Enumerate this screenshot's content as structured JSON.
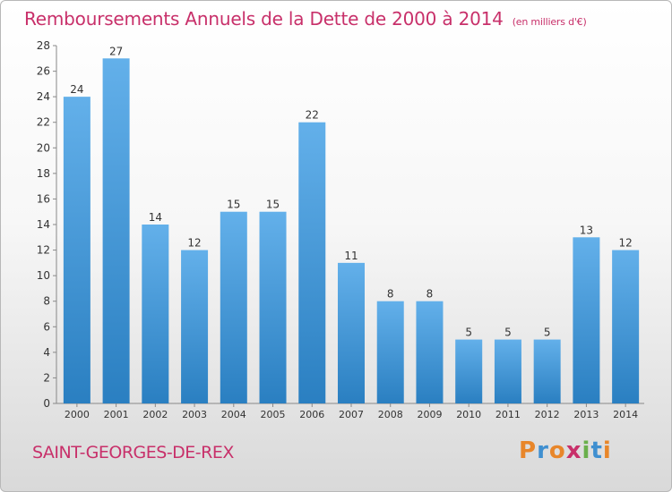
{
  "header": {
    "title": "Remboursements Annuels de la Dette de 2000 à 2014",
    "unit": "(en milliers d'€)"
  },
  "footer": {
    "commune": "SAINT-GEORGES-DE-REX",
    "brand": "Proxiti",
    "brand_letters": [
      {
        "ch": "P",
        "color": "#e8862a"
      },
      {
        "ch": "r",
        "color": "#3f8fd0"
      },
      {
        "ch": "o",
        "color": "#e8862a"
      },
      {
        "ch": "x",
        "color": "#c8306a"
      },
      {
        "ch": "i",
        "color": "#6ab04c"
      },
      {
        "ch": "t",
        "color": "#3f8fd0"
      },
      {
        "ch": "i",
        "color": "#e8862a"
      }
    ]
  },
  "chart_data": {
    "type": "bar",
    "categories": [
      "2000",
      "2001",
      "2002",
      "2003",
      "2004",
      "2005",
      "2006",
      "2007",
      "2008",
      "2009",
      "2010",
      "2011",
      "2012",
      "2013",
      "2014"
    ],
    "values": [
      24,
      27,
      14,
      12,
      15,
      15,
      22,
      11,
      8,
      8,
      5,
      5,
      5,
      13,
      12
    ],
    "title": "Remboursements Annuels de la Dette de 2000 à 2014",
    "ylim": [
      0,
      28
    ],
    "yticks": [
      0,
      2,
      4,
      6,
      8,
      10,
      12,
      14,
      16,
      18,
      20,
      22,
      24,
      26,
      28
    ],
    "grid": false,
    "bar_color_top": "#63b0ea",
    "bar_color_bottom": "#2a7fc1"
  }
}
